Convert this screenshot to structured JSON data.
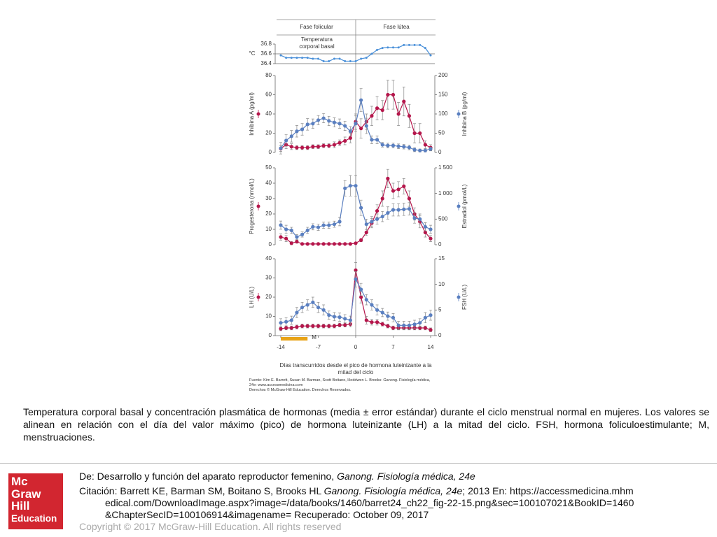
{
  "chart_data": [
    {
      "type": "line",
      "phases": [
        "Fase folicular",
        "Fase lútea"
      ],
      "ylabel": "°C",
      "annotation": "Temperatura corporal basal",
      "x": [
        -14,
        -13,
        -12,
        -11,
        -10,
        -9,
        -8,
        -7,
        -6,
        -5,
        -4,
        -3,
        -2,
        -1,
        0,
        1,
        2,
        3,
        4,
        5,
        6,
        7,
        8,
        9,
        10,
        11,
        12,
        13,
        14
      ],
      "xlim": [
        -14,
        14
      ],
      "ylim": [
        36.4,
        36.8
      ],
      "yticks": [
        36.4,
        36.6,
        36.8
      ],
      "reference_line": 36.6,
      "series": [
        {
          "color": "#4a90d9",
          "values": [
            36.57,
            36.52,
            36.52,
            36.52,
            36.52,
            36.52,
            36.5,
            36.5,
            36.45,
            36.45,
            36.5,
            36.5,
            36.45,
            36.45,
            36.45,
            36.5,
            36.52,
            36.6,
            36.68,
            36.72,
            36.73,
            36.73,
            36.73,
            36.78,
            36.78,
            36.78,
            36.78,
            36.72,
            36.57
          ]
        }
      ]
    },
    {
      "type": "line",
      "x": [
        -14,
        -13,
        -12,
        -11,
        -10,
        -9,
        -8,
        -7,
        -6,
        -5,
        -4,
        -3,
        -2,
        -1,
        0,
        1,
        2,
        3,
        4,
        5,
        6,
        7,
        8,
        9,
        10,
        11,
        12,
        13,
        14
      ],
      "xlim": [
        -14,
        14
      ],
      "ylim": [
        0,
        80
      ],
      "yticks": [
        0,
        20,
        40,
        60,
        80
      ],
      "y2lim": [
        0,
        200
      ],
      "y2ticks": [
        0,
        50,
        100,
        150,
        200
      ],
      "series": [
        {
          "name": "Inhibina A (pg/ml)",
          "color": "#b5164b",
          "values": [
            4,
            8,
            6,
            5,
            5,
            5,
            6,
            6,
            7,
            7,
            8,
            10,
            12,
            15,
            32,
            25,
            32,
            38,
            46,
            44,
            60,
            60,
            40,
            53,
            38,
            20,
            20,
            8,
            5
          ],
          "errors": [
            3,
            4,
            3,
            2,
            2,
            2,
            2,
            2,
            2,
            2,
            3,
            3,
            4,
            5,
            8,
            10,
            8,
            10,
            12,
            10,
            15,
            15,
            12,
            15,
            12,
            10,
            10,
            4,
            3
          ]
        },
        {
          "name": "Inhibina B (pg/ml)",
          "color": "#5a7fc0",
          "axis": "y2",
          "values": [
            11,
            31,
            42,
            55,
            60,
            73,
            75,
            84,
            89,
            82,
            78,
            75,
            69,
            55,
            75,
            136,
            69,
            33,
            33,
            20,
            18,
            18,
            16,
            15,
            13,
            7,
            5,
            5,
            9
          ],
          "errors": [
            15,
            15,
            15,
            15,
            15,
            15,
            12,
            12,
            12,
            12,
            12,
            12,
            12,
            12,
            20,
            30,
            20,
            10,
            10,
            6,
            6,
            6,
            6,
            6,
            6,
            5,
            4,
            4,
            5
          ]
        }
      ]
    },
    {
      "type": "line",
      "x": [
        -14,
        -13,
        -12,
        -11,
        -10,
        -9,
        -8,
        -7,
        -6,
        -5,
        -4,
        -3,
        -2,
        -1,
        0,
        1,
        2,
        3,
        4,
        5,
        6,
        7,
        8,
        9,
        10,
        11,
        12,
        13,
        14
      ],
      "xlim": [
        -14,
        14
      ],
      "ylim": [
        0,
        50
      ],
      "yticks": [
        0,
        10,
        20,
        30,
        40,
        50
      ],
      "y2lim": [
        0,
        1500
      ],
      "y2ticks": [
        0,
        500,
        {
          "value": 1000,
          "label": "1 000"
        },
        {
          "value": 1500,
          "label": "1 500"
        }
      ],
      "series": [
        {
          "name": "Progesterona (nmol/L)",
          "color": "#b5164b",
          "values": [
            5,
            4,
            1,
            2,
            0.5,
            0.5,
            0.5,
            0.5,
            0.5,
            0.5,
            0.5,
            0.5,
            0.5,
            0.5,
            1,
            3,
            8,
            14,
            22,
            30,
            43,
            35,
            36,
            38,
            30,
            20,
            15,
            8,
            4
          ],
          "errors": [
            2,
            2,
            1,
            1,
            0.5,
            0.5,
            0.5,
            0.5,
            0.5,
            0.5,
            0.5,
            0.5,
            0.5,
            0.5,
            0.5,
            1,
            2,
            3,
            4,
            5,
            6,
            5,
            5,
            5,
            5,
            4,
            4,
            3,
            2
          ]
        },
        {
          "name": "Estradiol (pmol/L)",
          "color": "#5a7fc0",
          "axis": "y2",
          "values": [
            382,
            300,
            280,
            150,
            200,
            280,
            350,
            340,
            380,
            380,
            400,
            450,
            1100,
            1150,
            1150,
            720,
            400,
            450,
            500,
            550,
            620,
            680,
            680,
            690,
            700,
            520,
            500,
            350,
            300
          ],
          "errors": [
            80,
            80,
            60,
            50,
            50,
            60,
            60,
            60,
            60,
            60,
            60,
            80,
            150,
            200,
            200,
            150,
            100,
            100,
            100,
            100,
            120,
            120,
            120,
            120,
            120,
            100,
            100,
            80,
            80
          ]
        }
      ]
    },
    {
      "type": "line",
      "x": [
        -14,
        -13,
        -12,
        -11,
        -10,
        -9,
        -8,
        -7,
        -6,
        -5,
        -4,
        -3,
        -2,
        -1,
        0,
        1,
        2,
        3,
        4,
        5,
        6,
        7,
        8,
        9,
        10,
        11,
        12,
        13,
        14
      ],
      "xlim": [
        -14,
        14
      ],
      "xticks": [
        -14,
        -7,
        0,
        7,
        14
      ],
      "xlabel": "Días transcurridos desde el pico de hormona luteinizante a la mitad del ciclo",
      "ylim": [
        0,
        40
      ],
      "yticks": [
        0,
        10,
        20,
        30,
        40
      ],
      "y2lim": [
        0,
        15
      ],
      "y2ticks": [
        0,
        5,
        10,
        15
      ],
      "menses": {
        "label": "M",
        "start": -14,
        "end": -9
      },
      "series": [
        {
          "name": "LH (U/L)",
          "color": "#b5164b",
          "values": [
            3.6,
            4,
            4,
            4.5,
            5,
            5,
            5,
            5,
            5,
            5,
            5,
            5.5,
            5.5,
            6,
            34,
            20,
            8,
            7,
            7,
            6,
            5,
            4,
            4,
            4,
            4,
            4,
            4,
            4,
            3
          ],
          "errors": [
            1,
            1,
            1,
            1,
            1,
            1,
            1,
            1,
            1,
            1,
            1,
            1,
            1,
            1.5,
            4,
            3,
            2,
            1.5,
            1.5,
            1,
            1,
            1,
            1,
            1,
            1,
            1,
            1,
            1,
            1
          ]
        },
        {
          "name": "FSH (U/L)",
          "color": "#5a7fc0",
          "axis": "y2",
          "values": [
            2.5,
            2.7,
            3,
            4.5,
            5.5,
            6,
            6.5,
            5.5,
            5,
            4,
            3.7,
            3.6,
            3.3,
            3,
            11,
            9,
            7,
            6,
            5,
            4.5,
            3.8,
            3.5,
            2,
            2,
            2,
            2.2,
            2.5,
            3.5,
            4
          ],
          "errors": [
            0.8,
            0.8,
            0.8,
            1,
            1,
            1,
            1,
            1,
            1,
            0.8,
            0.8,
            0.8,
            0.8,
            0.8,
            1.5,
            1.2,
            1,
            1,
            1,
            0.8,
            0.8,
            0.8,
            0.8,
            0.8,
            0.8,
            0.8,
            0.8,
            1,
            1
          ]
        }
      ]
    }
  ],
  "source": "Fuente: Kim E. Barrett, Susan M. Barman, Scott Boitano, Heddwen L. Brooks: Ganong. Fisiología médica, 24e: www.accessmedicina.com",
  "rights": "Derechos © McGraw-Hill Education. Derechos Reservados.",
  "caption": "Temperatura corporal basal y concentración plasmática de hormonas (media ± error estándar) durante el ciclo menstrual normal en mujeres. Los valores se alinean en relación con el día del valor máximo (pico) de hormona luteinizante (LH) a la mitad del ciclo. FSH, hormona foliculoestimulante; M, menstruaciones.",
  "logo": [
    "Mc",
    "Graw",
    "Hill",
    "Education"
  ],
  "from": {
    "prefix": "De: Desarrollo y función del aparato reproductor femenino, ",
    "book": "Ganong. Fisiología médica, 24e"
  },
  "citation": {
    "prefix": "Citación: Barrett KE, Barman SM, Boitano S, Brooks HL ",
    "book": "Ganong. Fisiología médica, 24e",
    "rest": "; 2013 En: https://accessmedicina.mhmedical.com/DownloadImage.aspx?image=/data/books/1460/barret24_ch22_fig-22-15.png&sec=100107021&BookID=1460&ChapterSecID=100106914&imagename= Recuperado: October 09, 2017"
  },
  "copyright": "Copyright © 2017 McGraw-Hill Education. All rights reserved"
}
